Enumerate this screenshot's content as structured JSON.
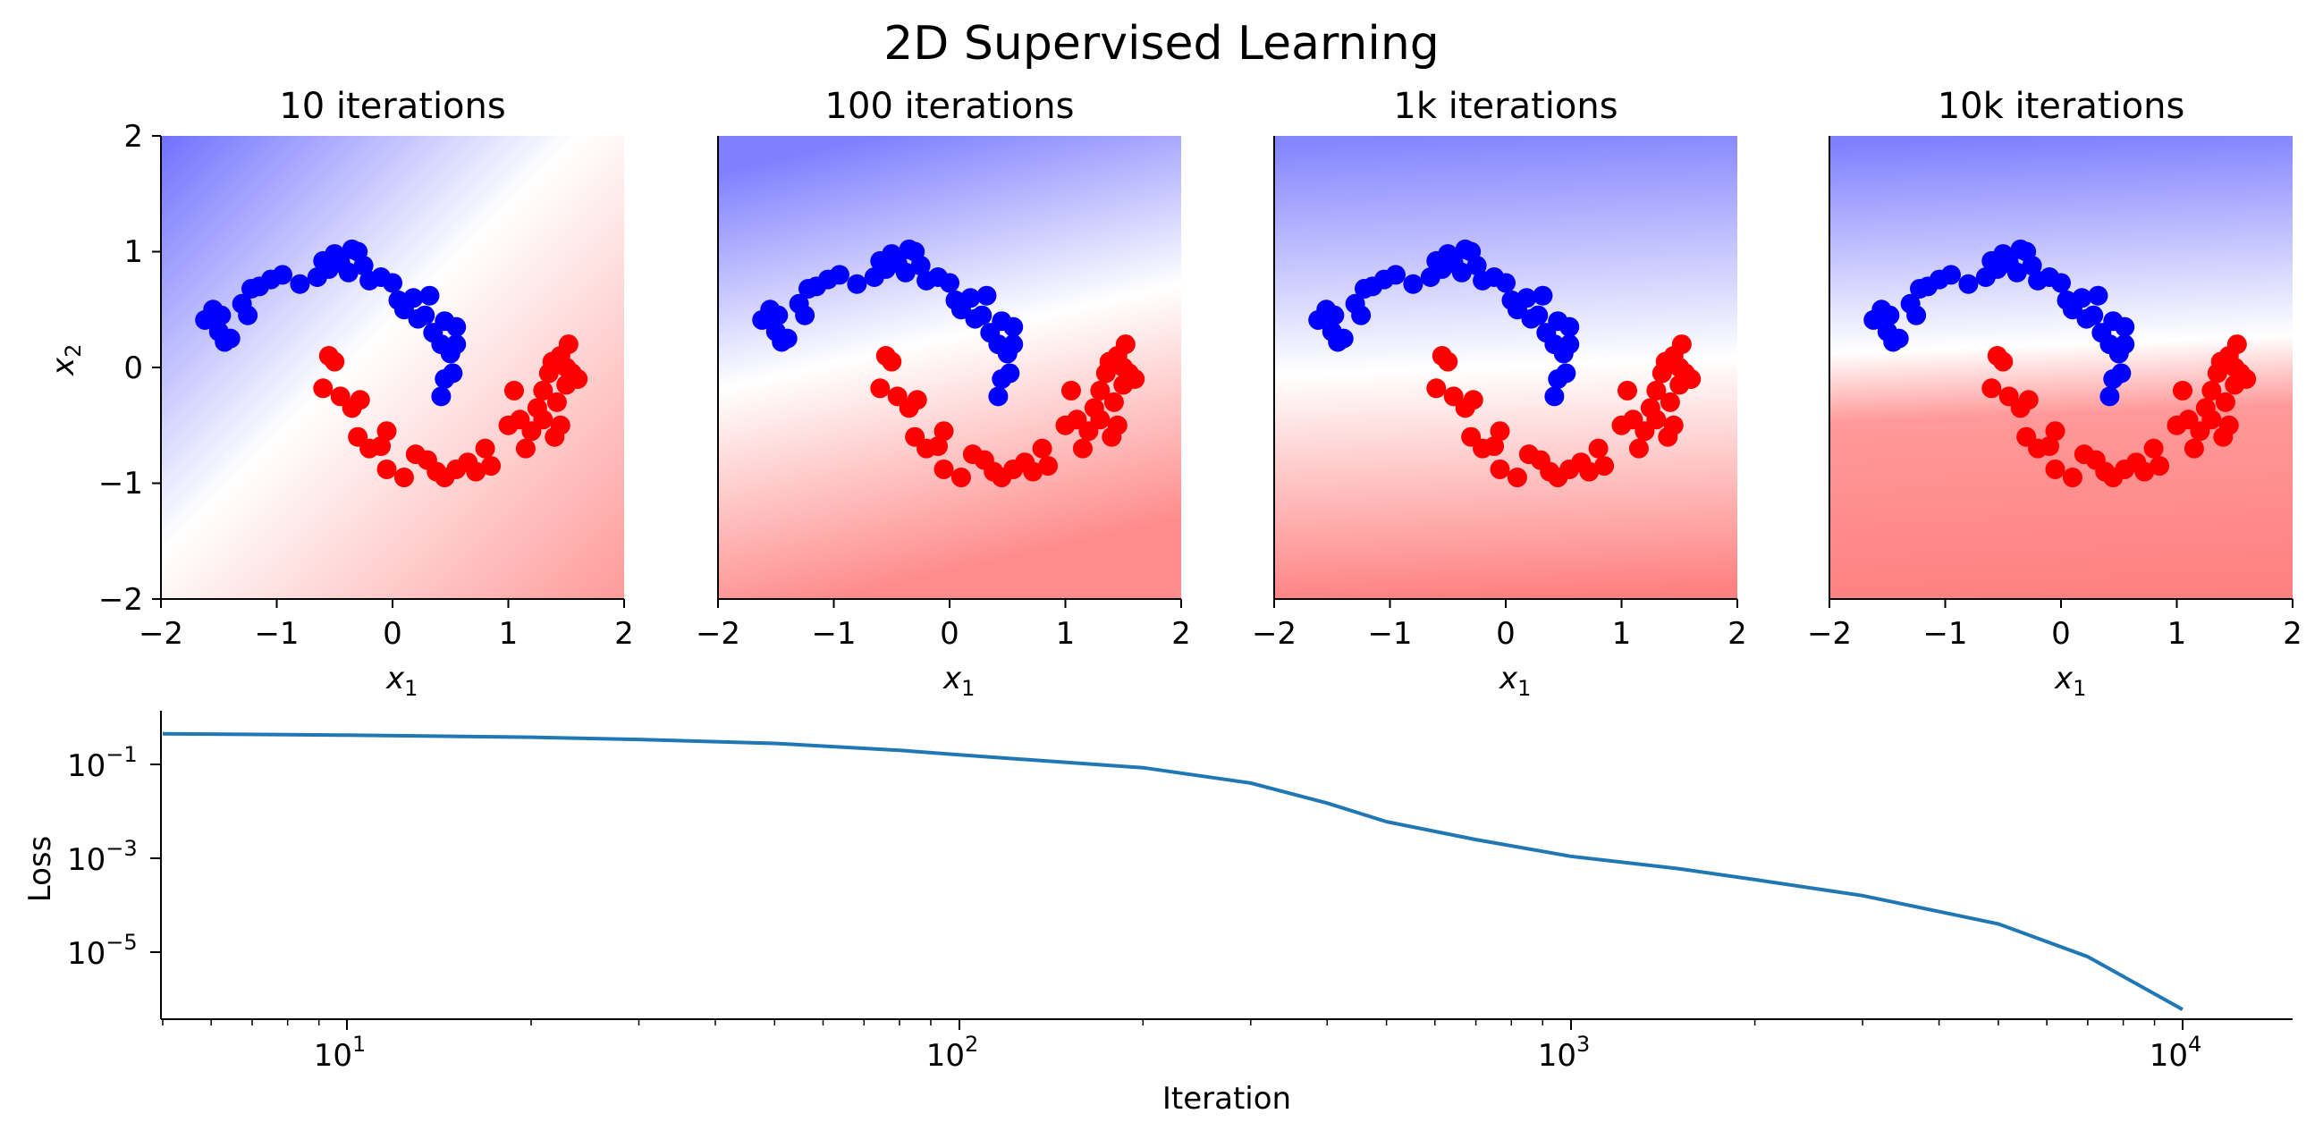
{
  "figure": {
    "title": "2D Supervised Learning"
  },
  "panels": [
    {
      "title": "10 iterations",
      "xlabel": "x",
      "xlabel_sub": "1",
      "ylabel": "x",
      "ylabel_sub": "2"
    },
    {
      "title": "100 iterations",
      "xlabel": "x",
      "xlabel_sub": "1"
    },
    {
      "title": "1k iterations",
      "xlabel": "x",
      "xlabel_sub": "1"
    },
    {
      "title": "10k iterations",
      "xlabel": "x",
      "xlabel_sub": "1"
    }
  ],
  "panel_ticks": {
    "x": [
      "−2",
      "−1",
      "0",
      "1",
      "2"
    ],
    "y": [
      "2",
      "1",
      "0",
      "−1",
      "−2"
    ]
  },
  "loss_plot": {
    "xlabel": "Iteration",
    "ylabel": "Loss",
    "xticks": [
      {
        "base": "10",
        "exp": "1"
      },
      {
        "base": "10",
        "exp": "2"
      },
      {
        "base": "10",
        "exp": "3"
      },
      {
        "base": "10",
        "exp": "4"
      }
    ],
    "yticks": [
      {
        "base": "10",
        "exp": "−1"
      },
      {
        "base": "10",
        "exp": "−3"
      },
      {
        "base": "10",
        "exp": "−5"
      }
    ]
  },
  "colors": {
    "class_a": "#0000ff",
    "class_b": "#ff0000",
    "loss_line": "#1f77b4"
  },
  "chart_data": [
    {
      "type": "scatter",
      "title": "10 iterations",
      "xlabel": "x1",
      "ylabel": "x2",
      "xlim": [
        -2,
        2
      ],
      "ylim": [
        -2,
        2
      ],
      "background": "decision-function heatmap (blue to white to red)",
      "series": []
    },
    {
      "type": "scatter",
      "title": "100 iterations",
      "xlabel": "x1",
      "xlim": [
        -2,
        2
      ],
      "ylim": [
        -2,
        2
      ],
      "background": "decision-function heatmap (blue to white to red)"
    },
    {
      "type": "scatter",
      "title": "1k iterations",
      "xlabel": "x1",
      "xlim": [
        -2,
        2
      ],
      "ylim": [
        -2,
        2
      ],
      "background": "decision-function heatmap (blue to white to red)"
    },
    {
      "type": "scatter",
      "title": "10k iterations",
      "xlabel": "x1",
      "xlim": [
        -2,
        2
      ],
      "ylim": [
        -2,
        2
      ],
      "background": "decision-function heatmap (blue to white to red)"
    },
    {
      "type": "line",
      "xlabel": "Iteration",
      "ylabel": "Loss",
      "xscale": "log",
      "yscale": "log",
      "xlim": [
        5,
        15000
      ],
      "ylim": [
        1e-07,
        2
      ],
      "x": [
        5,
        8,
        10,
        20,
        30,
        50,
        80,
        100,
        150,
        200,
        300,
        400,
        500,
        700,
        1000,
        1500,
        2000,
        3000,
        5000,
        7000,
        10000
      ],
      "y": [
        0.45,
        0.43,
        0.42,
        0.38,
        0.34,
        0.28,
        0.2,
        0.16,
        0.11,
        0.085,
        0.04,
        0.015,
        0.006,
        0.0025,
        0.0011,
        0.0006,
        0.00035,
        0.00016,
        4e-05,
        8e-06,
        6e-07
      ]
    }
  ],
  "scatter_points": {
    "class_a": [
      [
        -1.62,
        0.41
      ],
      [
        -1.55,
        0.5
      ],
      [
        -1.48,
        0.45
      ],
      [
        -1.5,
        0.31
      ],
      [
        -1.45,
        0.22
      ],
      [
        -1.4,
        0.25
      ],
      [
        -1.3,
        0.55
      ],
      [
        -1.22,
        0.68
      ],
      [
        -1.25,
        0.45
      ],
      [
        -1.15,
        0.7
      ],
      [
        -1.05,
        0.76
      ],
      [
        -0.95,
        0.8
      ],
      [
        -0.8,
        0.72
      ],
      [
        -0.65,
        0.78
      ],
      [
        -0.55,
        0.85
      ],
      [
        -0.5,
        0.98
      ],
      [
        -0.45,
        0.9
      ],
      [
        -0.38,
        0.82
      ],
      [
        -0.3,
        1.0
      ],
      [
        -0.25,
        0.88
      ],
      [
        -0.2,
        0.75
      ],
      [
        -0.1,
        0.78
      ],
      [
        0.0,
        0.73
      ],
      [
        0.05,
        0.58
      ],
      [
        0.1,
        0.5
      ],
      [
        0.18,
        0.6
      ],
      [
        0.22,
        0.42
      ],
      [
        0.28,
        0.45
      ],
      [
        0.32,
        0.62
      ],
      [
        0.35,
        0.3
      ],
      [
        0.42,
        0.2
      ],
      [
        0.45,
        0.4
      ],
      [
        0.5,
        0.12
      ],
      [
        0.55,
        0.35
      ],
      [
        0.52,
        -0.05
      ],
      [
        0.45,
        -0.1
      ],
      [
        0.42,
        -0.25
      ],
      [
        0.55,
        0.2
      ],
      [
        -0.6,
        0.92
      ],
      [
        -0.35,
        1.02
      ]
    ],
    "class_b": [
      [
        -0.55,
        0.1
      ],
      [
        -0.5,
        0.05
      ],
      [
        -0.6,
        -0.18
      ],
      [
        -0.45,
        -0.25
      ],
      [
        -0.35,
        -0.35
      ],
      [
        -0.28,
        -0.28
      ],
      [
        -0.3,
        -0.6
      ],
      [
        -0.2,
        -0.7
      ],
      [
        -0.1,
        -0.68
      ],
      [
        -0.05,
        -0.88
      ],
      [
        0.1,
        -0.95
      ],
      [
        0.3,
        -0.8
      ],
      [
        0.38,
        -0.9
      ],
      [
        0.45,
        -0.95
      ],
      [
        0.55,
        -0.88
      ],
      [
        0.65,
        -0.82
      ],
      [
        0.72,
        -0.9
      ],
      [
        0.8,
        -0.7
      ],
      [
        0.85,
        -0.85
      ],
      [
        1.0,
        -0.5
      ],
      [
        1.05,
        -0.2
      ],
      [
        1.1,
        -0.45
      ],
      [
        1.2,
        -0.55
      ],
      [
        1.25,
        -0.35
      ],
      [
        1.3,
        -0.2
      ],
      [
        1.35,
        -0.05
      ],
      [
        1.38,
        0.05
      ],
      [
        1.42,
        -0.3
      ],
      [
        1.45,
        0.1
      ],
      [
        1.5,
        -0.15
      ],
      [
        1.52,
        0.2
      ],
      [
        1.55,
        -0.05
      ],
      [
        1.6,
        -0.1
      ],
      [
        1.3,
        -0.45
      ],
      [
        1.4,
        -0.6
      ],
      [
        1.5,
        0.0
      ],
      [
        1.45,
        -0.5
      ],
      [
        0.2,
        -0.75
      ],
      [
        -0.05,
        -0.55
      ],
      [
        1.15,
        -0.7
      ]
    ]
  }
}
